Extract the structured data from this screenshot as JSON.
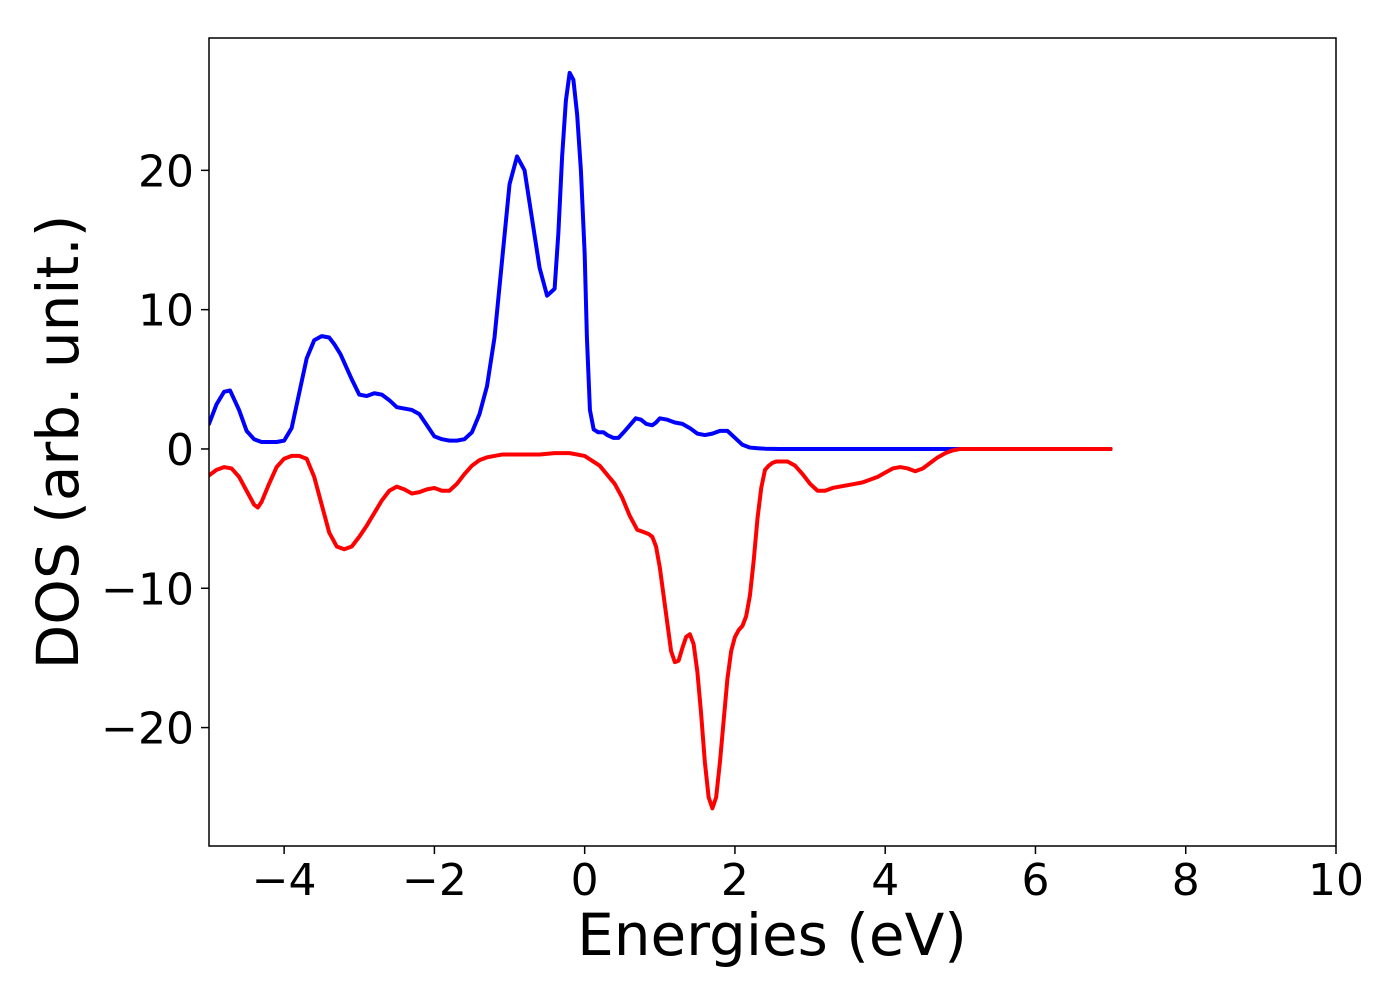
{
  "chart_data": {
    "type": "line",
    "title": "",
    "xlabel": "Energies (eV)",
    "ylabel": "DOS (arb. unit.)",
    "xlim": [
      -5,
      10
    ],
    "ylim": [
      -28.5,
      29.5
    ],
    "xticks": [
      -4,
      -2,
      0,
      2,
      4,
      6,
      8,
      10
    ],
    "xtick_labels": [
      "−4",
      "−2",
      "0",
      "2",
      "4",
      "6",
      "8",
      "10"
    ],
    "yticks": [
      -20,
      -10,
      0,
      10,
      20
    ],
    "ytick_labels": [
      "−20",
      "−10",
      "0",
      "10",
      "20"
    ],
    "grid": false,
    "legend": "none",
    "series": [
      {
        "color": "#0000ff",
        "x": [
          -5.0,
          -4.9,
          -4.8,
          -4.72,
          -4.6,
          -4.5,
          -4.4,
          -4.3,
          -4.2,
          -4.1,
          -4.0,
          -3.9,
          -3.8,
          -3.7,
          -3.6,
          -3.5,
          -3.4,
          -3.33,
          -3.25,
          -3.1,
          -3.0,
          -2.9,
          -2.8,
          -2.7,
          -2.6,
          -2.5,
          -2.4,
          -2.3,
          -2.2,
          -2.1,
          -2.0,
          -1.9,
          -1.8,
          -1.7,
          -1.6,
          -1.5,
          -1.4,
          -1.3,
          -1.2,
          -1.1,
          -1.0,
          -0.9,
          -0.8,
          -0.7,
          -0.6,
          -0.5,
          -0.4,
          -0.35,
          -0.3,
          -0.25,
          -0.2,
          -0.15,
          -0.1,
          -0.05,
          0.0,
          0.03,
          0.07,
          0.12,
          0.18,
          0.25,
          0.3,
          0.38,
          0.45,
          0.52,
          0.6,
          0.68,
          0.75,
          0.82,
          0.9,
          0.95,
          1.0,
          1.1,
          1.2,
          1.3,
          1.4,
          1.5,
          1.6,
          1.7,
          1.8,
          1.9,
          2.0,
          2.1,
          2.2,
          2.3,
          2.4,
          2.5,
          2.6,
          2.7,
          2.8,
          2.9,
          3.0,
          3.1,
          3.2,
          3.3,
          3.4,
          3.5,
          3.6,
          3.7,
          3.8,
          3.85,
          3.95,
          4.05,
          4.15,
          4.25,
          4.4,
          4.6,
          4.8,
          5.0,
          5.5,
          6.0,
          6.5,
          7.0
        ],
        "y": [
          1.8,
          3.2,
          4.1,
          4.2,
          2.8,
          1.3,
          0.7,
          0.5,
          0.5,
          0.5,
          0.6,
          1.5,
          4.0,
          6.5,
          7.8,
          8.1,
          8.0,
          7.5,
          6.8,
          5.0,
          3.9,
          3.8,
          4.0,
          3.9,
          3.5,
          3.0,
          2.9,
          2.8,
          2.5,
          1.7,
          0.9,
          0.7,
          0.6,
          0.6,
          0.7,
          1.2,
          2.5,
          4.5,
          8.0,
          13.5,
          19.0,
          21.0,
          20.0,
          16.5,
          13.0,
          11.0,
          11.5,
          15.5,
          21.0,
          25.0,
          27.0,
          26.5,
          24.0,
          20.0,
          14.0,
          8.0,
          2.8,
          1.4,
          1.2,
          1.2,
          1.0,
          0.8,
          0.8,
          1.2,
          1.7,
          2.2,
          2.1,
          1.8,
          1.7,
          1.9,
          2.2,
          2.1,
          1.9,
          1.8,
          1.5,
          1.1,
          1.0,
          1.1,
          1.3,
          1.3,
          0.8,
          0.3,
          0.1,
          0.05,
          0.02,
          0.01,
          0.0,
          0.0,
          0.0,
          0.0,
          0.0,
          0.0,
          0.0,
          0.0,
          0.0,
          0.0,
          0.0,
          0.0,
          0.0,
          0.0,
          0.0,
          0.0,
          0.0,
          0.0,
          0.0,
          0.0,
          0.0,
          0.0,
          0.0,
          0.0,
          0.0,
          0.0
        ]
      },
      {
        "color": "#ff0000",
        "x": [
          -5.0,
          -4.9,
          -4.8,
          -4.7,
          -4.6,
          -4.5,
          -4.4,
          -4.35,
          -4.3,
          -4.2,
          -4.1,
          -4.0,
          -3.9,
          -3.8,
          -3.7,
          -3.6,
          -3.5,
          -3.4,
          -3.3,
          -3.2,
          -3.1,
          -3.0,
          -2.9,
          -2.8,
          -2.7,
          -2.6,
          -2.5,
          -2.4,
          -2.3,
          -2.2,
          -2.1,
          -2.0,
          -1.9,
          -1.8,
          -1.7,
          -1.6,
          -1.5,
          -1.4,
          -1.3,
          -1.2,
          -1.1,
          -1.0,
          -0.9,
          -0.8,
          -0.6,
          -0.4,
          -0.2,
          0.0,
          0.2,
          0.4,
          0.5,
          0.6,
          0.7,
          0.8,
          0.85,
          0.9,
          0.95,
          1.0,
          1.05,
          1.1,
          1.15,
          1.2,
          1.25,
          1.3,
          1.35,
          1.4,
          1.45,
          1.5,
          1.55,
          1.6,
          1.65,
          1.7,
          1.75,
          1.8,
          1.85,
          1.9,
          1.95,
          2.0,
          2.05,
          2.1,
          2.15,
          2.2,
          2.25,
          2.3,
          2.35,
          2.4,
          2.45,
          2.5,
          2.55,
          2.6,
          2.7,
          2.8,
          2.9,
          3.0,
          3.1,
          3.2,
          3.3,
          3.4,
          3.5,
          3.6,
          3.7,
          3.8,
          3.9,
          4.0,
          4.1,
          4.2,
          4.3,
          4.4,
          4.5,
          4.6,
          4.7,
          4.8,
          4.9,
          5.0,
          5.5,
          6.0,
          6.5,
          7.0
        ],
        "y": [
          -1.9,
          -1.5,
          -1.3,
          -1.4,
          -2.0,
          -3.0,
          -4.0,
          -4.2,
          -3.8,
          -2.5,
          -1.3,
          -0.7,
          -0.5,
          -0.5,
          -0.7,
          -2.0,
          -4.0,
          -6.0,
          -7.0,
          -7.2,
          -7.0,
          -6.3,
          -5.5,
          -4.6,
          -3.7,
          -3.0,
          -2.7,
          -2.9,
          -3.2,
          -3.1,
          -2.9,
          -2.8,
          -3.0,
          -3.0,
          -2.5,
          -1.8,
          -1.2,
          -0.8,
          -0.6,
          -0.5,
          -0.4,
          -0.4,
          -0.4,
          -0.4,
          -0.4,
          -0.3,
          -0.3,
          -0.5,
          -1.2,
          -2.5,
          -3.5,
          -4.8,
          -5.8,
          -6.0,
          -6.1,
          -6.3,
          -7.0,
          -8.5,
          -10.5,
          -12.5,
          -14.5,
          -15.3,
          -15.2,
          -14.3,
          -13.5,
          -13.3,
          -14.0,
          -16.0,
          -19.0,
          -22.5,
          -25.0,
          -25.8,
          -25.0,
          -22.5,
          -19.5,
          -16.5,
          -14.5,
          -13.5,
          -13.0,
          -12.7,
          -12.0,
          -10.5,
          -8.0,
          -5.0,
          -2.8,
          -1.5,
          -1.2,
          -1.0,
          -0.9,
          -0.9,
          -0.9,
          -1.2,
          -1.8,
          -2.5,
          -3.0,
          -3.0,
          -2.8,
          -2.7,
          -2.6,
          -2.5,
          -2.4,
          -2.2,
          -2.0,
          -1.7,
          -1.4,
          -1.3,
          -1.4,
          -1.6,
          -1.4,
          -1.0,
          -0.6,
          -0.3,
          -0.1,
          0.0,
          0.0,
          0.0,
          0.0,
          0.0
        ]
      }
    ]
  }
}
